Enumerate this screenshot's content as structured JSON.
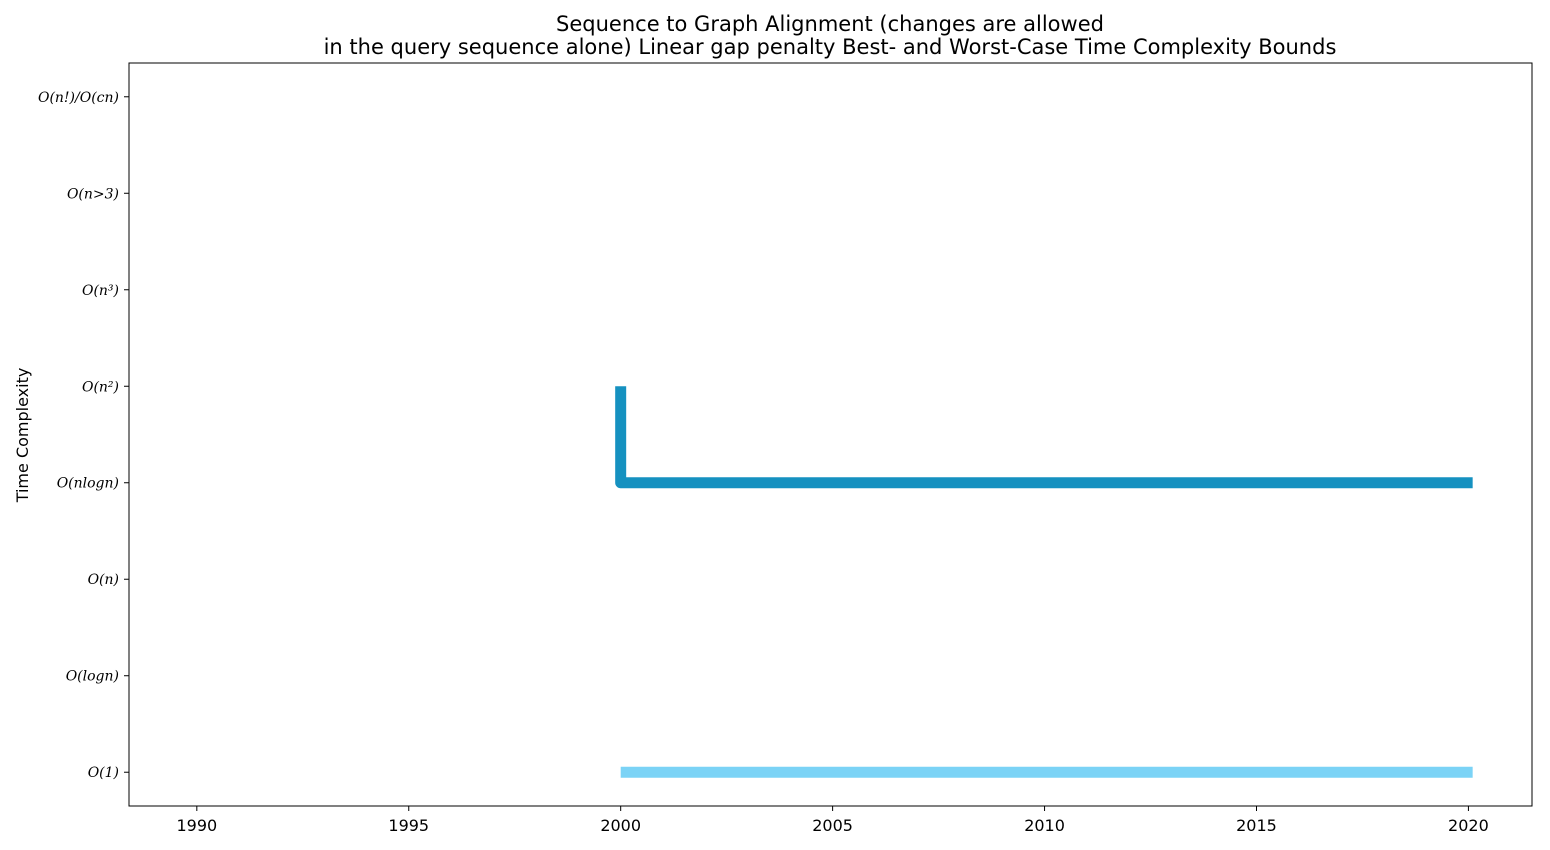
{
  "chart_data": {
    "type": "line",
    "title_line1": "Sequence to Graph Alignment (changes are allowed",
    "title_line2": "in the query sequence alone) Linear gap penalty Best- and Worst-Case Time Complexity Bounds",
    "xlabel": "",
    "ylabel": "Time Complexity",
    "xlim": [
      1988.4,
      2021.5
    ],
    "ylim": [
      -0.35,
      7.35
    ],
    "x_ticks": [
      1990,
      1995,
      2000,
      2005,
      2010,
      2015,
      2020
    ],
    "y_tick_labels": [
      "O(1)",
      "O(logn)",
      "O(n)",
      "O(nlogn)",
      "O(n²)",
      "O(n³)",
      "O(n>3)",
      "O(n!)/O(cn)"
    ],
    "grid": false,
    "series": [
      {
        "color": "#1591c0",
        "x": [
          2000,
          2000,
          2020.1
        ],
        "y": [
          4,
          3,
          3
        ]
      },
      {
        "color": "#7bd3f6",
        "x": [
          2000,
          2020.1
        ],
        "y": [
          0,
          0
        ]
      }
    ]
  }
}
